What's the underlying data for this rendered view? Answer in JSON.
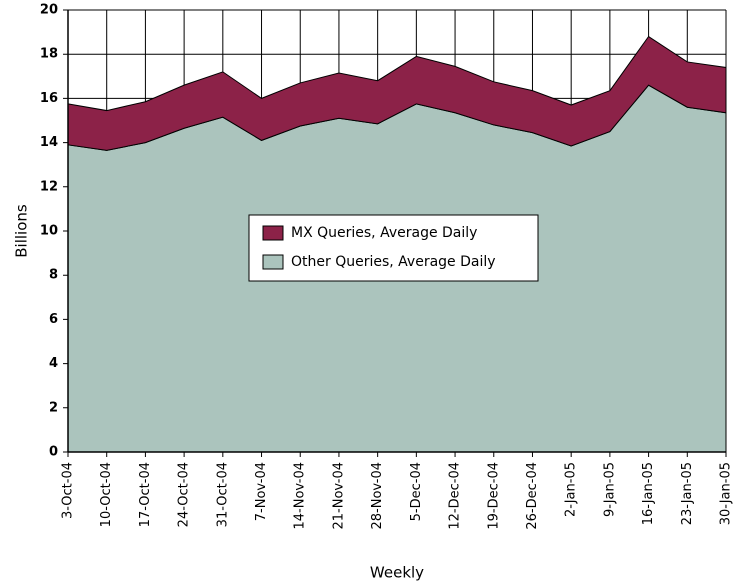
{
  "chart_data": {
    "type": "stacked_area",
    "x_label": "Weekly",
    "y_label": "Billions",
    "categories": [
      "3-Oct-04",
      "10-Oct-04",
      "17-Oct-04",
      "24-Oct-04",
      "31-Oct-04",
      "7-Nov-04",
      "14-Nov-04",
      "21-Nov-04",
      "28-Nov-04",
      "5-Dec-04",
      "12-Dec-04",
      "19-Dec-04",
      "26-Dec-04",
      "2-Jan-05",
      "9-Jan-05",
      "16-Jan-05",
      "23-Jan-05",
      "30-Jan-05"
    ],
    "series": [
      {
        "name": "MX Queries, Average Daily",
        "color": "#8c2248",
        "values": [
          1.85,
          1.8,
          1.85,
          1.95,
          2.05,
          1.9,
          1.95,
          2.05,
          1.95,
          2.15,
          2.1,
          1.95,
          1.9,
          1.85,
          1.85,
          2.2,
          2.05,
          2.05
        ]
      },
      {
        "name": "Other Queries, Average Daily",
        "color": "#abc4bd",
        "values": [
          13.9,
          13.65,
          14.0,
          14.65,
          15.15,
          14.1,
          14.75,
          15.1,
          14.85,
          15.75,
          15.35,
          14.8,
          14.45,
          13.85,
          14.5,
          16.6,
          15.6,
          15.35
        ]
      }
    ],
    "ylim": [
      0,
      20
    ],
    "yticks": [
      0,
      2,
      4,
      6,
      8,
      10,
      12,
      14,
      16,
      18,
      20
    ],
    "grid": true
  }
}
